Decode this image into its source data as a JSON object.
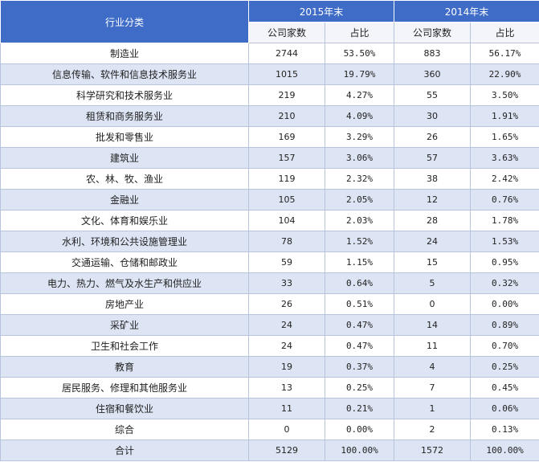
{
  "header": {
    "industry_label": "行业分类",
    "year_2015": "2015年末",
    "year_2014": "2014年末",
    "col_count": "公司家数",
    "col_ratio": "占比"
  },
  "rows": [
    {
      "industry": "制造业",
      "c2015": "2744",
      "r2015": "53.50%",
      "c2014": "883",
      "r2014": "56.17%"
    },
    {
      "industry": "信息传输、软件和信息技术服务业",
      "c2015": "1015",
      "r2015": "19.79%",
      "c2014": "360",
      "r2014": "22.90%"
    },
    {
      "industry": "科学研究和技术服务业",
      "c2015": "219",
      "r2015": "4.27%",
      "c2014": "55",
      "r2014": "3.50%"
    },
    {
      "industry": "租赁和商务服务业",
      "c2015": "210",
      "r2015": "4.09%",
      "c2014": "30",
      "r2014": "1.91%"
    },
    {
      "industry": "批发和零售业",
      "c2015": "169",
      "r2015": "3.29%",
      "c2014": "26",
      "r2014": "1.65%"
    },
    {
      "industry": "建筑业",
      "c2015": "157",
      "r2015": "3.06%",
      "c2014": "57",
      "r2014": "3.63%"
    },
    {
      "industry": "农、林、牧、渔业",
      "c2015": "119",
      "r2015": "2.32%",
      "c2014": "38",
      "r2014": "2.42%"
    },
    {
      "industry": "金融业",
      "c2015": "105",
      "r2015": "2.05%",
      "c2014": "12",
      "r2014": "0.76%"
    },
    {
      "industry": "文化、体育和娱乐业",
      "c2015": "104",
      "r2015": "2.03%",
      "c2014": "28",
      "r2014": "1.78%"
    },
    {
      "industry": "水利、环境和公共设施管理业",
      "c2015": "78",
      "r2015": "1.52%",
      "c2014": "24",
      "r2014": "1.53%"
    },
    {
      "industry": "交通运输、仓储和邮政业",
      "c2015": "59",
      "r2015": "1.15%",
      "c2014": "15",
      "r2014": "0.95%"
    },
    {
      "industry": "电力、热力、燃气及水生产和供应业",
      "c2015": "33",
      "r2015": "0.64%",
      "c2014": "5",
      "r2014": "0.32%"
    },
    {
      "industry": "房地产业",
      "c2015": "26",
      "r2015": "0.51%",
      "c2014": "0",
      "r2014": "0.00%"
    },
    {
      "industry": "采矿业",
      "c2015": "24",
      "r2015": "0.47%",
      "c2014": "14",
      "r2014": "0.89%"
    },
    {
      "industry": "卫生和社会工作",
      "c2015": "24",
      "r2015": "0.47%",
      "c2014": "11",
      "r2014": "0.70%"
    },
    {
      "industry": "教育",
      "c2015": "19",
      "r2015": "0.37%",
      "c2014": "4",
      "r2014": "0.25%"
    },
    {
      "industry": "居民服务、修理和其他服务业",
      "c2015": "13",
      "r2015": "0.25%",
      "c2014": "7",
      "r2014": "0.45%"
    },
    {
      "industry": "住宿和餐饮业",
      "c2015": "11",
      "r2015": "0.21%",
      "c2014": "1",
      "r2014": "0.06%"
    },
    {
      "industry": "综合",
      "c2015": "0",
      "r2015": "0.00%",
      "c2014": "2",
      "r2014": "0.13%"
    },
    {
      "industry": "合计",
      "c2015": "5129",
      "r2015": "100.00%",
      "c2014": "1572",
      "r2014": "100.00%"
    }
  ]
}
